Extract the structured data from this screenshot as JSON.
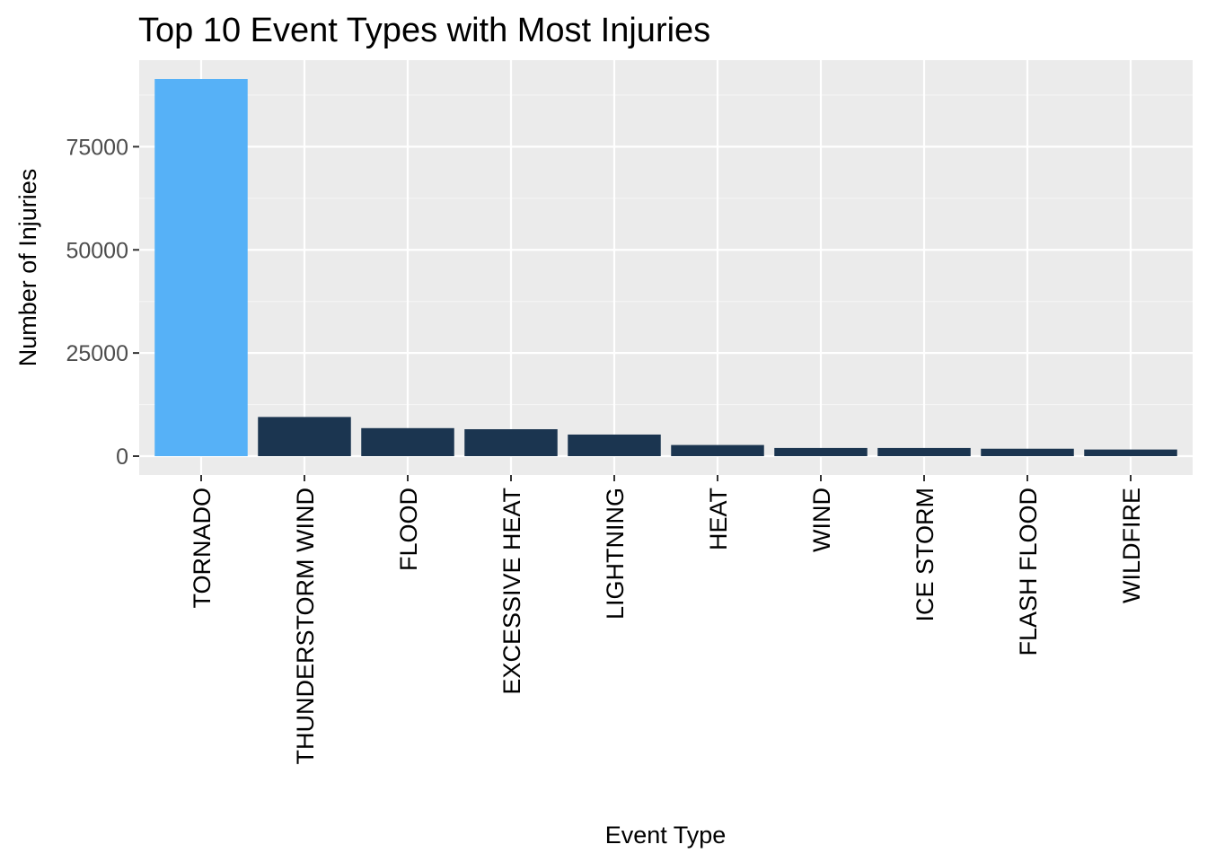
{
  "chart_data": {
    "type": "bar",
    "title": "Top 10 Event Types with Most Injuries",
    "xlabel": "Event Type",
    "ylabel": "Number of Injuries",
    "categories": [
      "TORNADO",
      "THUNDERSTORM WIND",
      "FLOOD",
      "EXCESSIVE HEAT",
      "LIGHTNING",
      "HEAT",
      "WIND",
      "ICE STORM",
      "FLASH FLOOD",
      "WILDFIRE"
    ],
    "values": [
      91407,
      9493,
      6791,
      6525,
      5231,
      2699,
      1976,
      1975,
      1800,
      1606
    ],
    "bar_colors": [
      "#56b1f7",
      "#1b3550",
      "#1b3550",
      "#1b3550",
      "#1b3550",
      "#1b3550",
      "#1b3550",
      "#1b3550",
      "#1b3550",
      "#1b3550"
    ],
    "yticks": [
      0,
      25000,
      50000,
      75000
    ],
    "ylim": [
      -4570,
      95977
    ],
    "grid": true,
    "legend": "none",
    "colors": {
      "panel_background": "#ebebeb",
      "grid_major": "#ffffff",
      "grid_minor": "#f5f5f5",
      "highlight_bar": "#56b1f7",
      "bar": "#1b3550"
    }
  }
}
